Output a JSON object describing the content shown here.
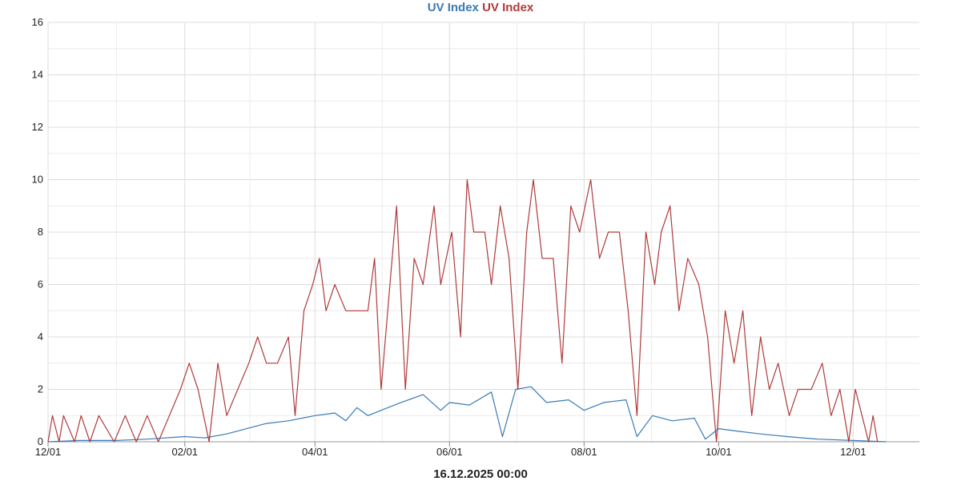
{
  "chart_data": {
    "type": "line",
    "title_parts": [
      {
        "text": "UV Index",
        "color": "#3a7ab5"
      },
      {
        "text": "UV Index",
        "color": "#b03a3a"
      }
    ],
    "footer": "16.12.2025 00:00",
    "x_axis": {
      "start": "2024-12-01",
      "end": "2025-12-31",
      "ticks": [
        {
          "date": "2024-12-01",
          "label": "12/01"
        },
        {
          "date": "2025-02-01",
          "label": "02/01"
        },
        {
          "date": "2025-04-01",
          "label": "04/01"
        },
        {
          "date": "2025-06-01",
          "label": "06/01"
        },
        {
          "date": "2025-08-01",
          "label": "08/01"
        },
        {
          "date": "2025-10-01",
          "label": "10/01"
        },
        {
          "date": "2025-12-01",
          "label": "12/01"
        }
      ]
    },
    "y_axis": {
      "min": 0,
      "max": 16,
      "ticks": [
        0,
        2,
        4,
        6,
        8,
        10,
        12,
        14,
        16
      ]
    },
    "grid": true,
    "series": [
      {
        "name": "UV Index",
        "color": "#3a7ab5",
        "points": [
          [
            "2024-12-01",
            0
          ],
          [
            "2024-12-15",
            0.05
          ],
          [
            "2025-01-01",
            0.05
          ],
          [
            "2025-01-15",
            0.1
          ],
          [
            "2025-02-01",
            0.2
          ],
          [
            "2025-02-10",
            0.15
          ],
          [
            "2025-02-20",
            0.3
          ],
          [
            "2025-03-01",
            0.5
          ],
          [
            "2025-03-10",
            0.7
          ],
          [
            "2025-03-20",
            0.8
          ],
          [
            "2025-04-01",
            1.0
          ],
          [
            "2025-04-10",
            1.1
          ],
          [
            "2025-04-15",
            0.8
          ],
          [
            "2025-04-20",
            1.3
          ],
          [
            "2025-04-25",
            1.0
          ],
          [
            "2025-05-01",
            1.2
          ],
          [
            "2025-05-10",
            1.5
          ],
          [
            "2025-05-20",
            1.8
          ],
          [
            "2025-05-28",
            1.2
          ],
          [
            "2025-06-01",
            1.5
          ],
          [
            "2025-06-10",
            1.4
          ],
          [
            "2025-06-20",
            1.9
          ],
          [
            "2025-06-25",
            0.2
          ],
          [
            "2025-07-01",
            2.0
          ],
          [
            "2025-07-08",
            2.1
          ],
          [
            "2025-07-15",
            1.5
          ],
          [
            "2025-07-25",
            1.6
          ],
          [
            "2025-08-01",
            1.2
          ],
          [
            "2025-08-10",
            1.5
          ],
          [
            "2025-08-20",
            1.6
          ],
          [
            "2025-08-25",
            0.2
          ],
          [
            "2025-09-01",
            1.0
          ],
          [
            "2025-09-10",
            0.8
          ],
          [
            "2025-09-20",
            0.9
          ],
          [
            "2025-09-25",
            0.1
          ],
          [
            "2025-10-01",
            0.5
          ],
          [
            "2025-10-10",
            0.4
          ],
          [
            "2025-10-20",
            0.3
          ],
          [
            "2025-11-01",
            0.2
          ],
          [
            "2025-11-15",
            0.1
          ],
          [
            "2025-12-01",
            0.05
          ],
          [
            "2025-12-16",
            0
          ]
        ]
      },
      {
        "name": "UV Index",
        "color": "#b03a3a",
        "points": [
          [
            "2024-12-01",
            0
          ],
          [
            "2024-12-03",
            1
          ],
          [
            "2024-12-06",
            0
          ],
          [
            "2024-12-08",
            1
          ],
          [
            "2024-12-13",
            0
          ],
          [
            "2024-12-16",
            1
          ],
          [
            "2024-12-20",
            0
          ],
          [
            "2024-12-24",
            1
          ],
          [
            "2024-12-31",
            0
          ],
          [
            "2025-01-05",
            1
          ],
          [
            "2025-01-10",
            0
          ],
          [
            "2025-01-15",
            1
          ],
          [
            "2025-01-20",
            0
          ],
          [
            "2025-01-25",
            1
          ],
          [
            "2025-01-30",
            2
          ],
          [
            "2025-02-03",
            3
          ],
          [
            "2025-02-07",
            2
          ],
          [
            "2025-02-12",
            0
          ],
          [
            "2025-02-16",
            3
          ],
          [
            "2025-02-20",
            1
          ],
          [
            "2025-02-25",
            2
          ],
          [
            "2025-03-02",
            3
          ],
          [
            "2025-03-06",
            4
          ],
          [
            "2025-03-10",
            3
          ],
          [
            "2025-03-15",
            3
          ],
          [
            "2025-03-20",
            4
          ],
          [
            "2025-03-23",
            1
          ],
          [
            "2025-03-27",
            5
          ],
          [
            "2025-03-31",
            6
          ],
          [
            "2025-04-03",
            7
          ],
          [
            "2025-04-06",
            5
          ],
          [
            "2025-04-10",
            6
          ],
          [
            "2025-04-15",
            5
          ],
          [
            "2025-04-25",
            5
          ],
          [
            "2025-04-28",
            7
          ],
          [
            "2025-05-01",
            2
          ],
          [
            "2025-05-05",
            6
          ],
          [
            "2025-05-08",
            9
          ],
          [
            "2025-05-12",
            2
          ],
          [
            "2025-05-16",
            7
          ],
          [
            "2025-05-20",
            6
          ],
          [
            "2025-05-25",
            9
          ],
          [
            "2025-05-28",
            6
          ],
          [
            "2025-06-02",
            8
          ],
          [
            "2025-06-06",
            4
          ],
          [
            "2025-06-09",
            10
          ],
          [
            "2025-06-12",
            8
          ],
          [
            "2025-06-17",
            8
          ],
          [
            "2025-06-20",
            6
          ],
          [
            "2025-06-24",
            9
          ],
          [
            "2025-06-28",
            7
          ],
          [
            "2025-07-02",
            2
          ],
          [
            "2025-07-06",
            8
          ],
          [
            "2025-07-09",
            10
          ],
          [
            "2025-07-13",
            7
          ],
          [
            "2025-07-18",
            7
          ],
          [
            "2025-07-22",
            3
          ],
          [
            "2025-07-26",
            9
          ],
          [
            "2025-07-30",
            8
          ],
          [
            "2025-08-04",
            10
          ],
          [
            "2025-08-08",
            7
          ],
          [
            "2025-08-12",
            8
          ],
          [
            "2025-08-17",
            8
          ],
          [
            "2025-08-21",
            5
          ],
          [
            "2025-08-25",
            1
          ],
          [
            "2025-08-29",
            8
          ],
          [
            "2025-09-02",
            6
          ],
          [
            "2025-09-05",
            8
          ],
          [
            "2025-09-09",
            9
          ],
          [
            "2025-09-13",
            5
          ],
          [
            "2025-09-17",
            7
          ],
          [
            "2025-09-22",
            6
          ],
          [
            "2025-09-26",
            4
          ],
          [
            "2025-09-30",
            0
          ],
          [
            "2025-10-04",
            5
          ],
          [
            "2025-10-08",
            3
          ],
          [
            "2025-10-12",
            5
          ],
          [
            "2025-10-16",
            1
          ],
          [
            "2025-10-20",
            4
          ],
          [
            "2025-10-24",
            2
          ],
          [
            "2025-10-28",
            3
          ],
          [
            "2025-11-02",
            1
          ],
          [
            "2025-11-06",
            2
          ],
          [
            "2025-11-12",
            2
          ],
          [
            "2025-11-17",
            3
          ],
          [
            "2025-11-21",
            1
          ],
          [
            "2025-11-25",
            2
          ],
          [
            "2025-11-29",
            0
          ],
          [
            "2025-12-02",
            2
          ],
          [
            "2025-12-05",
            1
          ],
          [
            "2025-12-08",
            0
          ],
          [
            "2025-12-10",
            1
          ],
          [
            "2025-12-12",
            0
          ]
        ]
      }
    ]
  }
}
